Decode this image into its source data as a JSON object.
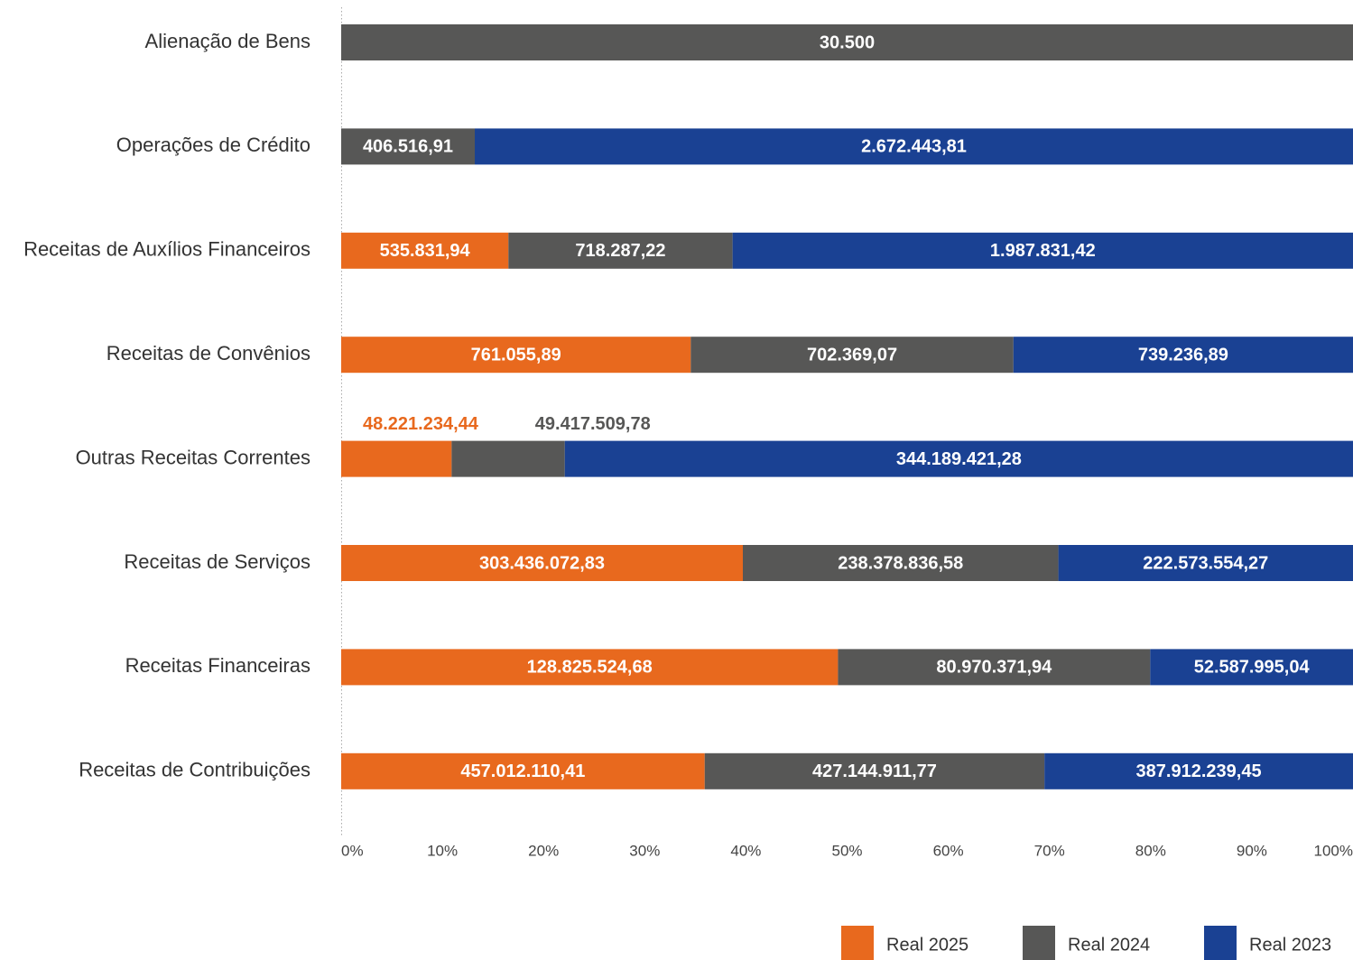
{
  "chart_data": {
    "type": "bar",
    "orientation": "horizontal",
    "stacked": "percent",
    "categories": [
      "Alienação de Bens",
      "Operações de Crédito",
      "Receitas de Auxílios Financeiros",
      "Receitas de Convênios",
      "Outras Receitas Correntes",
      "Receitas de Serviços",
      "Receitas Financeiras",
      "Receitas de Contribuições"
    ],
    "series": [
      {
        "name": "Real 2025",
        "color": "#e8691e",
        "values": [
          null,
          null,
          535831.94,
          761055.89,
          48221234.44,
          303436072.83,
          128825524.68,
          457012110.41
        ],
        "value_labels": [
          null,
          null,
          "535.831,94",
          "761.055,89",
          "48.221.234,44",
          "303.436.072,83",
          "128.825.524,68",
          "457.012.110,41"
        ]
      },
      {
        "name": "Real 2024",
        "color": "#575756",
        "values": [
          30500,
          406516.91,
          718287.22,
          702369.07,
          49417509.78,
          238378836.58,
          80970371.94,
          427144911.77
        ],
        "value_labels": [
          "30.500",
          "406.516,91",
          "718.287,22",
          "702.369,07",
          "49.417.509,78",
          "238.378.836,58",
          "80.970.371,94",
          "427.144.911,77"
        ]
      },
      {
        "name": "Real 2023",
        "color": "#1a4193",
        "values": [
          null,
          2672443.81,
          1987831.42,
          739236.89,
          344189421.28,
          222573554.27,
          52587995.04,
          387912239.45
        ],
        "value_labels": [
          null,
          "2.672.443,81",
          "1.987.831,42",
          "739.236,89",
          "344.189.421,28",
          "222.573.554,27",
          "52.587.995,04",
          "387.912.239,45"
        ]
      }
    ],
    "xlim": [
      0,
      100
    ],
    "xticks": [
      {
        "value": 0,
        "label": "0%"
      },
      {
        "value": 10,
        "label": "10%"
      },
      {
        "value": 20,
        "label": "20%"
      },
      {
        "value": 30,
        "label": "30%"
      },
      {
        "value": 40,
        "label": "40%"
      },
      {
        "value": 50,
        "label": "50%"
      },
      {
        "value": 60,
        "label": "60%"
      },
      {
        "value": 70,
        "label": "70%"
      },
      {
        "value": 80,
        "label": "80%"
      },
      {
        "value": 90,
        "label": "90%"
      },
      {
        "value": 100,
        "label": "100%"
      }
    ],
    "legend": "bottom-right"
  }
}
